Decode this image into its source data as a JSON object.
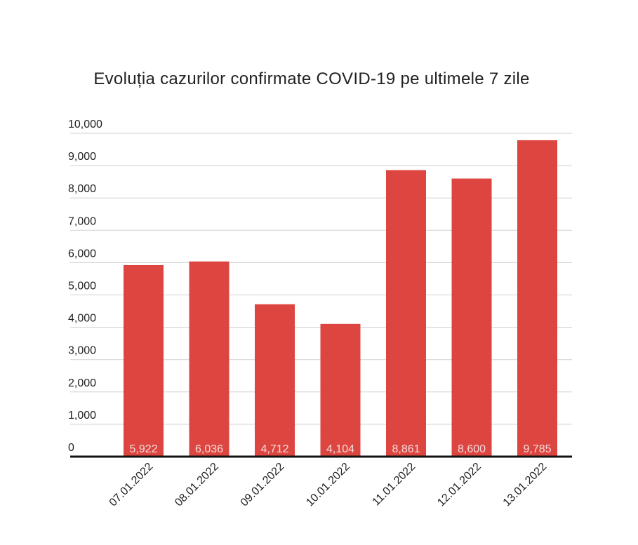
{
  "chart_data": {
    "type": "bar",
    "title": "Evoluția cazurilor confirmate COVID-19 pe ultimele 7 zile",
    "categories": [
      "07.01.2022",
      "08.01.2022",
      "09.01.2022",
      "10.01.2022",
      "11.01.2022",
      "12.01.2022",
      "13.01.2022"
    ],
    "values": [
      5922,
      6036,
      4712,
      4104,
      8861,
      8600,
      9785
    ],
    "data_labels": [
      "5,922",
      "6,036",
      "4,712",
      "4,104",
      "8,861",
      "8,600",
      "9,785"
    ],
    "ylim": [
      0,
      10000
    ],
    "yticks": [
      0,
      1000,
      2000,
      3000,
      4000,
      5000,
      6000,
      7000,
      8000,
      9000,
      10000
    ],
    "ytick_labels": [
      "0",
      "1,000",
      "2,000",
      "3,000",
      "4,000",
      "5,000",
      "6,000",
      "7,000",
      "8,000",
      "9,000",
      "10,000"
    ],
    "xlabel": "",
    "ylabel": "",
    "grid": true,
    "legend": "none",
    "bar_color": "#dd4640"
  }
}
